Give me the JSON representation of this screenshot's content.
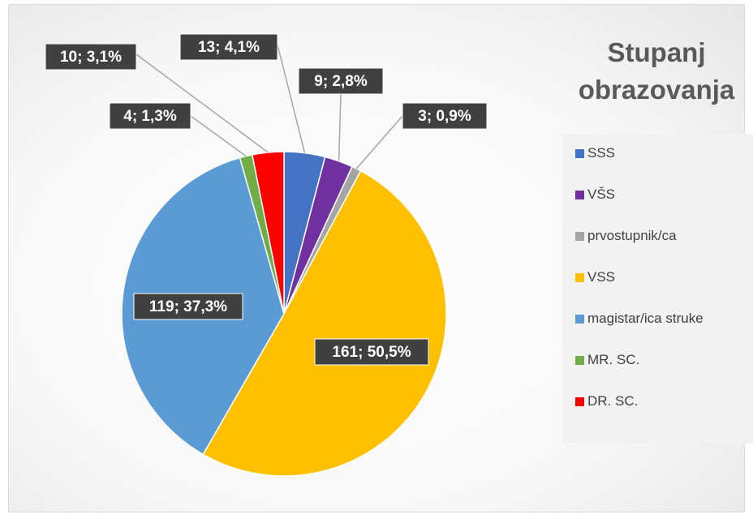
{
  "chart_data": {
    "type": "pie",
    "title": "Stupanj obrazovanja",
    "categories": [
      "SSS",
      "VŠS",
      "prvostupnik/ca",
      "VSS",
      "magistar/ica struke",
      "MR. SC.",
      "DR. SC."
    ],
    "values": [
      13,
      9,
      3,
      161,
      119,
      4,
      10
    ],
    "value_labels": [
      "13; 4,1%",
      "9; 2,8%",
      "3; 0,9%",
      "161; 50,5%",
      "119; 37,3%",
      "4; 1,3%",
      "10; 3,1%"
    ],
    "colors": [
      "#4472c4",
      "#7030a0",
      "#a5a5a5",
      "#ffc000",
      "#5b9bd5",
      "#70ad47",
      "#ff0000"
    ],
    "legend": "right"
  }
}
